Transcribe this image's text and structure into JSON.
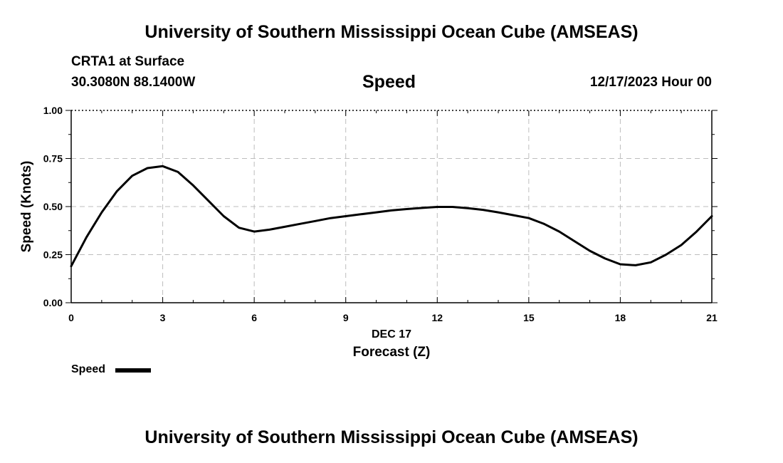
{
  "header": {
    "title": "University of Southern Mississippi Ocean Cube (AMSEAS)",
    "station": "CRTA1 at Surface",
    "coords": "30.3080N  88.1400W",
    "datetime": "12/17/2023 Hour 00"
  },
  "footer": {
    "title": "University of Southern Mississippi Ocean Cube (AMSEAS)"
  },
  "legend": {
    "label": "Speed"
  },
  "chart_data": {
    "type": "line",
    "title": "Speed",
    "xlabel": "Forecast (Z)",
    "xlabel_date": "DEC 17",
    "ylabel": "Speed (Knots)",
    "xlim": [
      0,
      21
    ],
    "ylim": [
      0,
      1
    ],
    "xticks": [
      0,
      3,
      6,
      9,
      12,
      15,
      18,
      21
    ],
    "xtick_labels": [
      "0",
      "3",
      "6",
      "9",
      "12",
      "15",
      "18",
      "21"
    ],
    "yticks": [
      0,
      0.25,
      0.5,
      0.75,
      1.0
    ],
    "ytick_labels": [
      "0.00",
      "0.25",
      "0.50",
      "0.75",
      "1.00"
    ],
    "grid": true,
    "legend_position": "bottom-left",
    "line_color": "#000000",
    "series": [
      {
        "name": "Speed",
        "x": [
          0,
          0.5,
          1,
          1.5,
          2,
          2.5,
          3,
          3.5,
          4,
          4.5,
          5,
          5.5,
          6,
          6.5,
          7,
          7.5,
          8,
          8.5,
          9,
          9.5,
          10,
          10.5,
          11,
          11.5,
          12,
          12.5,
          13,
          13.5,
          14,
          14.5,
          15,
          15.5,
          16,
          16.5,
          17,
          17.5,
          18,
          18.5,
          19,
          19.5,
          20,
          20.5,
          21
        ],
        "y": [
          0.19,
          0.34,
          0.47,
          0.58,
          0.66,
          0.7,
          0.71,
          0.68,
          0.61,
          0.53,
          0.45,
          0.39,
          0.37,
          0.38,
          0.395,
          0.41,
          0.425,
          0.44,
          0.45,
          0.46,
          0.47,
          0.48,
          0.487,
          0.493,
          0.498,
          0.498,
          0.492,
          0.483,
          0.47,
          0.455,
          0.44,
          0.41,
          0.37,
          0.32,
          0.27,
          0.23,
          0.2,
          0.195,
          0.21,
          0.25,
          0.3,
          0.37,
          0.45
        ]
      }
    ]
  }
}
